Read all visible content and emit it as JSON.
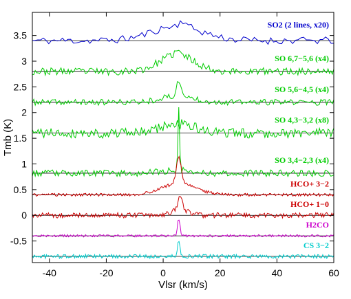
{
  "chart_data": {
    "type": "line",
    "xlabel": "Vlsr (km/s)",
    "ylabel": "Tmb (K)",
    "xlim": [
      -46,
      60
    ],
    "ylim": [
      -0.92,
      3.95
    ],
    "xticks": [
      -40,
      -20,
      0,
      20,
      40,
      60
    ],
    "yticks": [
      -0.5,
      0,
      0.5,
      1,
      1.5,
      2,
      2.5,
      3,
      3.5
    ],
    "ytick_labels": [
      "-0.5",
      "0",
      "0.5",
      "1",
      "1.5",
      "2",
      "2.5",
      "3",
      "3.5"
    ],
    "grid": false,
    "series": [
      {
        "name": "SO2 (2 lines, x20)",
        "color": "#0000cc",
        "baseline": 3.4,
        "noise": 0.055,
        "seed": 11,
        "n": 110,
        "features": [
          {
            "x": 5,
            "amp": 0.28,
            "width": 9
          },
          {
            "x": 7,
            "amp": 0.12,
            "width": 1.2
          }
        ]
      },
      {
        "name": "SO 6,7−5,6 (x4)",
        "color": "#00cc00",
        "baseline": 2.8,
        "noise": 0.055,
        "seed": 23,
        "n": 210,
        "features": [
          {
            "x": 5,
            "amp": 0.33,
            "width": 6
          },
          {
            "x": 5,
            "amp": 0.06,
            "width": 1.0
          }
        ]
      },
      {
        "name": "SO 5,6−4,5 (x4)",
        "color": "#00cc00",
        "baseline": 2.2,
        "noise": 0.045,
        "seed": 37,
        "n": 210,
        "features": [
          {
            "x": 5,
            "amp": 0.12,
            "width": 6
          },
          {
            "x": 5.5,
            "amp": 0.32,
            "width": 0.7
          }
        ]
      },
      {
        "name": "SO 4,3−3,2 (x8)",
        "color": "#00cc00",
        "baseline": 1.6,
        "noise": 0.075,
        "seed": 41,
        "n": 210,
        "features": [
          {
            "x": 5,
            "amp": 0.18,
            "width": 6
          }
        ]
      },
      {
        "name": "SO 3,4−2,3 (x4)",
        "color": "#00cc00",
        "baseline": 0.82,
        "noise": 0.05,
        "seed": 53,
        "n": 210,
        "features": [
          {
            "x": 5.5,
            "amp": 1.25,
            "width": 0.3
          },
          {
            "x": 5,
            "amp": 0.06,
            "width": 5
          }
        ]
      },
      {
        "name": "HCO+ 3−2",
        "color": "#cc0000",
        "baseline": 0.4,
        "noise": 0.022,
        "seed": 61,
        "n": 300,
        "features": [
          {
            "x": 5.5,
            "amp": 0.22,
            "width": 6
          },
          {
            "x": 5.5,
            "amp": 0.5,
            "width": 0.85
          }
        ]
      },
      {
        "name": "HCO+ 1−0",
        "color": "#cc0000",
        "baseline": 0.0,
        "noise": 0.04,
        "seed": 71,
        "n": 300,
        "features": [
          {
            "x": 6,
            "amp": 0.12,
            "width": 3
          },
          {
            "x": 6,
            "amp": 0.3,
            "width": 0.6
          }
        ]
      },
      {
        "name": "H2CO",
        "color": "#cc00cc",
        "baseline": -0.4,
        "noise": 0.018,
        "seed": 83,
        "n": 300,
        "features": [
          {
            "x": 5.5,
            "amp": 0.33,
            "width": 0.45
          }
        ]
      },
      {
        "name": "CS 3−2",
        "color": "#00cccc",
        "baseline": -0.8,
        "noise": 0.03,
        "seed": 97,
        "n": 300,
        "features": [
          {
            "x": 5.5,
            "amp": 0.3,
            "width": 0.45
          }
        ]
      }
    ]
  }
}
